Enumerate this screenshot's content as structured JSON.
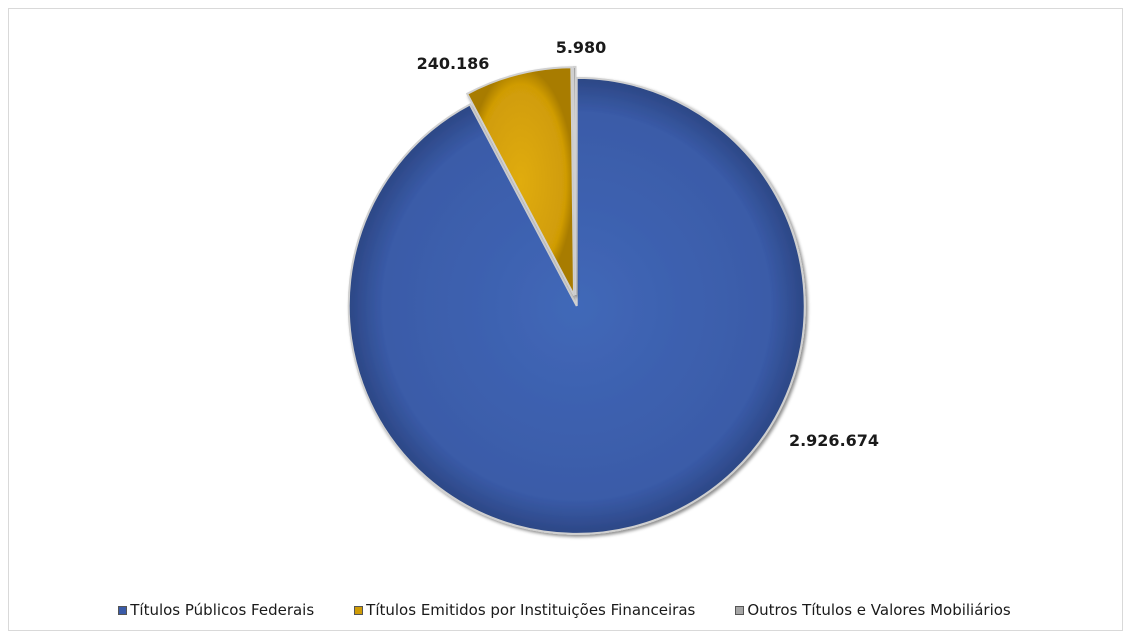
{
  "chart_data": {
    "type": "pie",
    "title": "",
    "categories": [
      "Títulos Públicos Federais",
      "Títulos Emitidos por Instituições Financeiras",
      "Outros Títulos e Valores Mobiliários"
    ],
    "values": [
      2926674,
      240186,
      5980
    ],
    "data_labels": [
      "2.926.674",
      "240.186",
      "5.980"
    ],
    "colors": [
      "#3a5ba8",
      "#d09c06",
      "#a6a6a6"
    ],
    "start_angle": "12 o'clock",
    "direction": "clockwise",
    "legend_position": "bottom",
    "exploded": true
  }
}
